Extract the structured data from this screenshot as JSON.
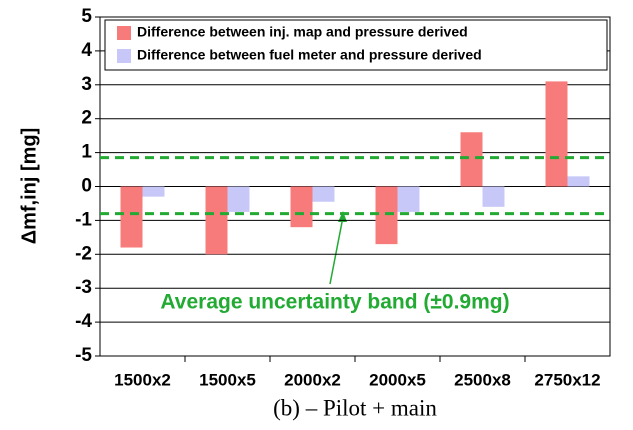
{
  "chart_data": {
    "type": "bar",
    "ylabel": "Δmf,inj [mg]",
    "caption": "(b) – Pilot + main",
    "annotation": "Average uncertainty band (±0.9mg)",
    "annotation_color": "#22aa33",
    "categories": [
      "1500x2",
      "1500x5",
      "2000x2",
      "2000x5",
      "2500x8",
      "2750x12"
    ],
    "series": [
      {
        "name": "Difference between inj. map and pressure derived",
        "color": "#f87b7b",
        "values": [
          -1.8,
          -2.0,
          -1.2,
          -1.7,
          1.6,
          3.1
        ]
      },
      {
        "name": "Difference between fuel meter and pressure derived",
        "color": "#c8c8f8",
        "values": [
          -0.3,
          -0.75,
          -0.45,
          -0.75,
          -0.6,
          0.3
        ]
      }
    ],
    "reference_lines": [
      0.85,
      -0.8
    ],
    "ylim": [
      -5,
      5
    ],
    "yticks": [
      -5,
      -4,
      -3,
      -2,
      -1,
      0,
      1,
      2,
      3,
      4,
      5
    ],
    "grid": true
  }
}
